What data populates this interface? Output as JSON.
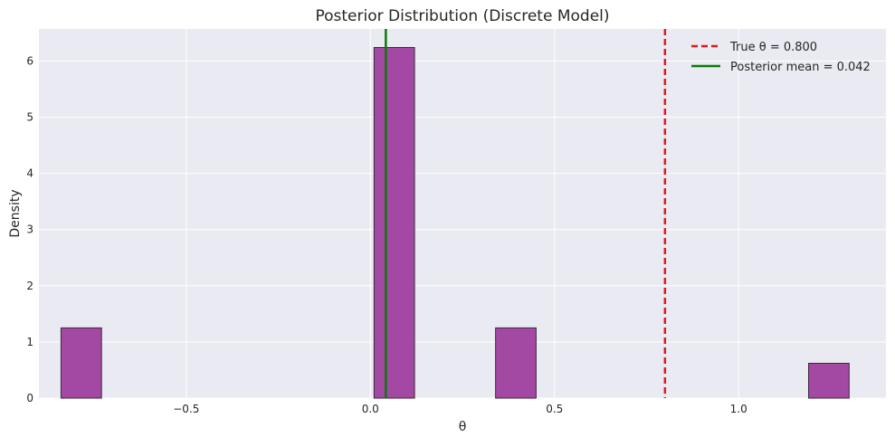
{
  "chart_data": {
    "type": "bar",
    "title": "Posterior Distribution (Discrete Model)",
    "xlabel": "θ",
    "ylabel": "Density",
    "xlim": [
      -0.9,
      1.4
    ],
    "ylim": [
      0,
      6.57
    ],
    "xticks": [
      -0.5,
      0.0,
      0.5,
      1.0
    ],
    "xtick_labels": [
      "−0.5",
      "0.0",
      "0.5",
      "1.0"
    ],
    "yticks": [
      0,
      1,
      2,
      3,
      4,
      5,
      6
    ],
    "ytick_labels": [
      "0",
      "1",
      "2",
      "3",
      "4",
      "5",
      "6"
    ],
    "grid": true,
    "legend_position": "top-right",
    "bars": [
      {
        "x0": -0.84,
        "x1": -0.73,
        "value": 1.25
      },
      {
        "x0": 0.01,
        "x1": 0.12,
        "value": 6.24
      },
      {
        "x0": 0.34,
        "x1": 0.45,
        "value": 1.25
      },
      {
        "x0": 1.19,
        "x1": 1.3,
        "value": 0.62
      }
    ],
    "bar_color": "#a348a3",
    "vlines": [
      {
        "name": "True θ = 0.800",
        "x": 0.8,
        "color": "#e31a1c",
        "style": "dashed"
      },
      {
        "name": "Posterior mean = 0.042",
        "x": 0.042,
        "color": "#0a7a0a",
        "style": "solid"
      }
    ],
    "colors": {
      "plot_bg": "#eaeaf2",
      "grid": "#ffffff",
      "bar_edge": "#3a2a3a"
    }
  }
}
